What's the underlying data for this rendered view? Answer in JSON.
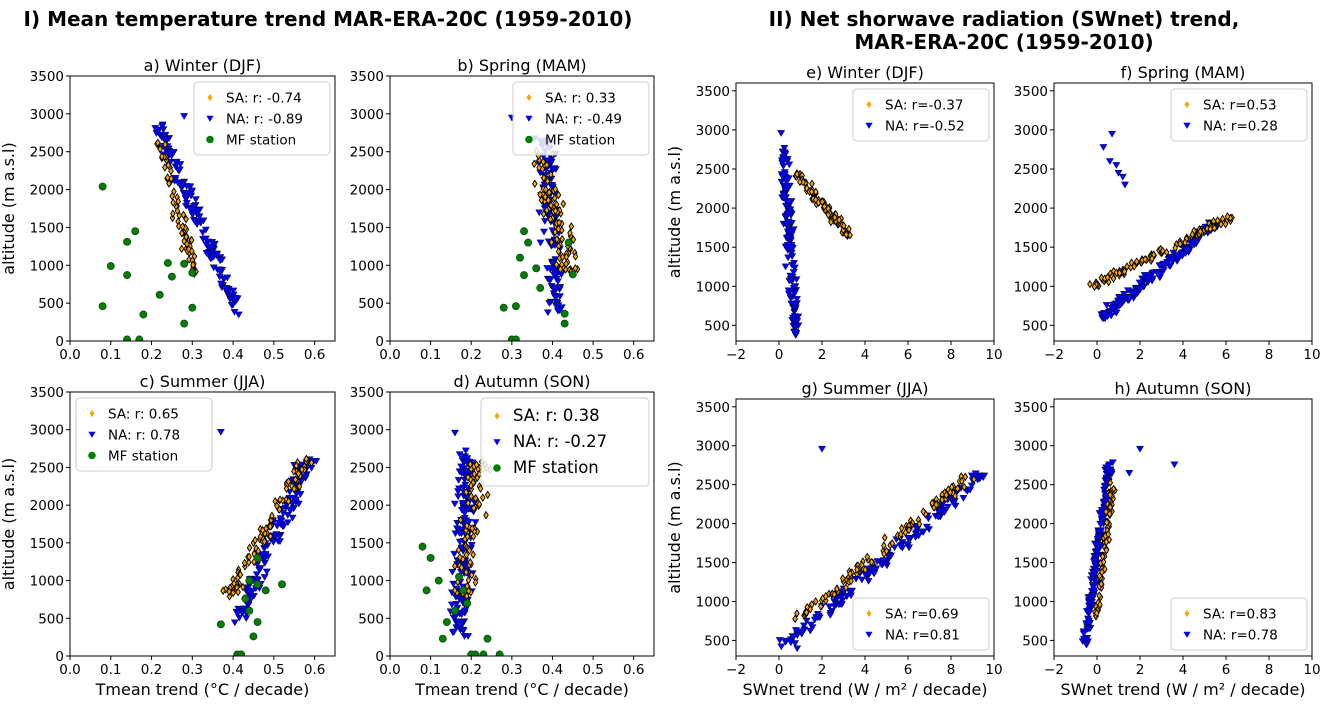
{
  "figure": {
    "left_title": "I) Mean temperature trend MAR-ERA-20C (1959-2010)",
    "right_title_line1": "II) Net shorwave radiation (SWnet) trend,",
    "right_title_line2": "MAR-ERA-20C (1959-2010)"
  },
  "colors": {
    "SA": "#ffa500",
    "NA": "#0000ff",
    "MF": "#008000",
    "edge": "#000000"
  },
  "chart_data": [
    {
      "type": "scatter",
      "title": "a) Winter (DJF)",
      "xlabel": "",
      "ylabel": "altitude (m a.s.l)",
      "xlim": [
        0.0,
        0.65
      ],
      "ylim": [
        0,
        3500
      ],
      "xticks": [
        "0.0",
        "0.1",
        "0.2",
        "0.3",
        "0.4",
        "0.5",
        "0.6"
      ],
      "yticks": [
        "0",
        "500",
        "1000",
        "1500",
        "2000",
        "2500",
        "3000",
        "3500"
      ],
      "legend": {
        "position": "top-right",
        "size": "small",
        "entries": [
          {
            "series": "SA",
            "label": "SA: r: -0.74"
          },
          {
            "series": "NA",
            "label": "NA: r: -0.89"
          },
          {
            "series": "MF",
            "label": "MF station"
          }
        ]
      },
      "SA_trend": {
        "x0": 0.22,
        "y0": 2650,
        "x1": 0.31,
        "y1": 850,
        "spread": 0.02,
        "n": 70
      },
      "NA_trend": {
        "x0": 0.22,
        "y0": 2800,
        "x1": 0.41,
        "y1": 400,
        "spread": 0.025,
        "n": 140
      },
      "NA_extra": [
        [
          0.28,
          2970
        ]
      ],
      "MF_points": [
        [
          0.08,
          2040
        ],
        [
          0.16,
          1450
        ],
        [
          0.14,
          1310
        ],
        [
          0.1,
          990
        ],
        [
          0.14,
          870
        ],
        [
          0.24,
          1030
        ],
        [
          0.25,
          850
        ],
        [
          0.28,
          1020
        ],
        [
          0.3,
          900
        ],
        [
          0.22,
          610
        ],
        [
          0.18,
          350
        ],
        [
          0.08,
          460
        ],
        [
          0.14,
          20
        ],
        [
          0.17,
          20
        ],
        [
          0.28,
          230
        ],
        [
          0.3,
          440
        ]
      ]
    },
    {
      "type": "scatter",
      "title": "b) Spring (MAM)",
      "xlabel": "",
      "ylabel": "",
      "xlim": [
        0.0,
        0.65
      ],
      "ylim": [
        0,
        3500
      ],
      "xticks": [
        "0.0",
        "0.1",
        "0.2",
        "0.3",
        "0.4",
        "0.5",
        "0.6"
      ],
      "yticks": [
        "0",
        "500",
        "1000",
        "1500",
        "2000",
        "2500",
        "3000",
        "3500"
      ],
      "legend": {
        "position": "top-right",
        "size": "small",
        "entries": [
          {
            "series": "SA",
            "label": "SA: r: 0.33"
          },
          {
            "series": "NA",
            "label": "NA: r: -0.49"
          },
          {
            "series": "MF",
            "label": "MF station"
          }
        ]
      },
      "SA_trend": {
        "x0": 0.36,
        "y0": 2600,
        "x1": 0.44,
        "y1": 900,
        "spread": 0.045,
        "n": 90
      },
      "NA_trend": {
        "x0": 0.38,
        "y0": 2700,
        "x1": 0.41,
        "y1": 400,
        "spread": 0.035,
        "n": 130
      },
      "NA_extra": [
        [
          0.3,
          2950
        ]
      ],
      "MF_points": [
        [
          0.33,
          1450
        ],
        [
          0.34,
          1300
        ],
        [
          0.32,
          1100
        ],
        [
          0.36,
          960
        ],
        [
          0.33,
          870
        ],
        [
          0.37,
          700
        ],
        [
          0.31,
          460
        ],
        [
          0.28,
          440
        ],
        [
          0.3,
          20
        ],
        [
          0.31,
          20
        ],
        [
          0.43,
          360
        ],
        [
          0.43,
          230
        ],
        [
          0.45,
          880
        ],
        [
          0.44,
          1300
        ]
      ]
    },
    {
      "type": "scatter",
      "title": "c) Summer (JJA)",
      "xlabel": "Tmean trend (°C / decade)",
      "ylabel": "altitude (m a.s.l)",
      "xlim": [
        0.0,
        0.65
      ],
      "ylim": [
        0,
        3500
      ],
      "xticks": [
        "0.0",
        "0.1",
        "0.2",
        "0.3",
        "0.4",
        "0.5",
        "0.6"
      ],
      "yticks": [
        "0",
        "500",
        "1000",
        "1500",
        "2000",
        "2500",
        "3000",
        "3500"
      ],
      "legend": {
        "position": "top-left",
        "size": "small",
        "entries": [
          {
            "series": "SA",
            "label": "SA: r: 0.65"
          },
          {
            "series": "NA",
            "label": "NA: r: 0.78"
          },
          {
            "series": "MF",
            "label": "MF station"
          }
        ]
      },
      "SA_trend": {
        "x0": 0.39,
        "y0": 800,
        "x1": 0.58,
        "y1": 2600,
        "spread": 0.03,
        "n": 90
      },
      "NA_trend": {
        "x0": 0.41,
        "y0": 450,
        "x1": 0.59,
        "y1": 2650,
        "spread": 0.03,
        "n": 150
      },
      "NA_extra": [
        [
          0.37,
          2970
        ]
      ],
      "MF_points": [
        [
          0.46,
          1300
        ],
        [
          0.44,
          1000
        ],
        [
          0.46,
          950
        ],
        [
          0.48,
          870
        ],
        [
          0.52,
          950
        ],
        [
          0.44,
          600
        ],
        [
          0.46,
          450
        ],
        [
          0.45,
          260
        ],
        [
          0.37,
          420
        ],
        [
          0.41,
          20
        ],
        [
          0.42,
          20
        ],
        [
          0.43,
          760
        ]
      ]
    },
    {
      "type": "scatter",
      "title": "d) Autumn (SON)",
      "xlabel": "Tmean trend (°C / decade)",
      "ylabel": "",
      "xlim": [
        0.0,
        0.65
      ],
      "ylim": [
        0,
        3500
      ],
      "xticks": [
        "0.0",
        "0.1",
        "0.2",
        "0.3",
        "0.4",
        "0.5",
        "0.6"
      ],
      "yticks": [
        "0",
        "500",
        "1000",
        "1500",
        "2000",
        "2500",
        "3000",
        "3500"
      ],
      "legend": {
        "position": "top-right",
        "size": "large",
        "entries": [
          {
            "series": "SA",
            "label": "SA: r: 0.38"
          },
          {
            "series": "NA",
            "label": "NA: r: -0.27"
          },
          {
            "series": "MF",
            "label": "MF station"
          }
        ]
      },
      "SA_trend": {
        "x0": 0.18,
        "y0": 800,
        "x1": 0.22,
        "y1": 2600,
        "spread": 0.04,
        "n": 80
      },
      "NA_trend": {
        "x0": 0.17,
        "y0": 300,
        "x1": 0.19,
        "y1": 2700,
        "spread": 0.035,
        "n": 150
      },
      "NA_extra": [
        [
          0.16,
          2960
        ]
      ],
      "MF_points": [
        [
          0.08,
          1450
        ],
        [
          0.1,
          1300
        ],
        [
          0.12,
          1000
        ],
        [
          0.09,
          870
        ],
        [
          0.17,
          1050
        ],
        [
          0.18,
          870
        ],
        [
          0.19,
          700
        ],
        [
          0.16,
          600
        ],
        [
          0.14,
          450
        ],
        [
          0.13,
          230
        ],
        [
          0.2,
          20
        ],
        [
          0.21,
          20
        ],
        [
          0.23,
          20
        ],
        [
          0.27,
          20
        ],
        [
          0.24,
          230
        ]
      ]
    },
    {
      "type": "scatter",
      "title": "e) Winter (DJF)",
      "xlabel": "",
      "ylabel": "altitude (m a.s.l)",
      "xlim": [
        -2,
        10
      ],
      "ylim": [
        300,
        3600
      ],
      "xticks": [
        "−2",
        "0",
        "2",
        "4",
        "6",
        "8",
        "10"
      ],
      "yticks": [
        "500",
        "1000",
        "1500",
        "2000",
        "2500",
        "3000",
        "3500"
      ],
      "legend": {
        "position": "top-right",
        "size": "small",
        "entries": [
          {
            "series": "SA",
            "label": "SA: r=-0.37"
          },
          {
            "series": "NA",
            "label": "NA: r=-0.52"
          }
        ]
      },
      "SA_trend": {
        "x0": 0.8,
        "y0": 2450,
        "x1": 3.2,
        "y1": 1650,
        "spread": 0.35,
        "n": 90
      },
      "NA_trend": {
        "x0": 0.2,
        "y0": 2800,
        "x1": 0.8,
        "y1": 400,
        "spread": 0.3,
        "n": 150
      },
      "NA_extra": [
        [
          0.1,
          2960
        ]
      ],
      "MF_points": []
    },
    {
      "type": "scatter",
      "title": "f) Spring (MAM)",
      "xlabel": "",
      "ylabel": "",
      "xlim": [
        -2,
        10
      ],
      "ylim": [
        300,
        3600
      ],
      "xticks": [
        "−2",
        "0",
        "2",
        "4",
        "6",
        "8",
        "10"
      ],
      "yticks": [
        "500",
        "1000",
        "1500",
        "2000",
        "2500",
        "3000",
        "3500"
      ],
      "legend": {
        "position": "top-right",
        "size": "small",
        "entries": [
          {
            "series": "SA",
            "label": "SA: r=0.53"
          },
          {
            "series": "NA",
            "label": "NA: r=0.28"
          }
        ]
      },
      "SA_trend": {
        "x0": -0.2,
        "y0": 1000,
        "x1": 6.3,
        "y1": 1900,
        "spread": 0.45,
        "n": 110
      },
      "NA_trend": {
        "x0": 0.2,
        "y0": 600,
        "x1": 5.5,
        "y1": 1800,
        "spread": 0.5,
        "n": 150
      },
      "NA_extra": [
        [
          0.3,
          2780
        ],
        [
          0.6,
          2600
        ],
        [
          1.0,
          2450
        ],
        [
          1.3,
          2300
        ],
        [
          0.7,
          2950
        ],
        [
          0.9,
          2550
        ],
        [
          1.2,
          2400
        ]
      ],
      "MF_points": []
    },
    {
      "type": "scatter",
      "title": "g) Summer (JJA)",
      "xlabel": "SWnet trend (W / m² / decade)",
      "ylabel": "altitude (m a.s.l)",
      "xlim": [
        -2,
        10
      ],
      "ylim": [
        300,
        3600
      ],
      "xticks": [
        "−2",
        "0",
        "2",
        "4",
        "6",
        "8",
        "10"
      ],
      "yticks": [
        "500",
        "1000",
        "1500",
        "2000",
        "2500",
        "3000",
        "3500"
      ],
      "legend": {
        "position": "bottom-right",
        "size": "small",
        "entries": [
          {
            "series": "SA",
            "label": "SA: r=0.69"
          },
          {
            "series": "NA",
            "label": "NA: r=0.81"
          }
        ]
      },
      "SA_trend": {
        "x0": 1.0,
        "y0": 800,
        "x1": 9.0,
        "y1": 2650,
        "spread": 0.45,
        "n": 110
      },
      "NA_trend": {
        "x0": 0.4,
        "y0": 450,
        "x1": 9.5,
        "y1": 2650,
        "spread": 0.55,
        "n": 160
      },
      "NA_extra": [
        [
          2.0,
          2960
        ]
      ],
      "MF_points": []
    },
    {
      "type": "scatter",
      "title": "h) Autumn (SON)",
      "xlabel": "SWnet trend (W / m² / decade)",
      "ylabel": "",
      "xlim": [
        -2,
        10
      ],
      "ylim": [
        300,
        3600
      ],
      "xticks": [
        "−2",
        "0",
        "2",
        "4",
        "6",
        "8",
        "10"
      ],
      "yticks": [
        "500",
        "1000",
        "1500",
        "2000",
        "2500",
        "3000",
        "3500"
      ],
      "legend": {
        "position": "bottom-right",
        "size": "small",
        "entries": [
          {
            "series": "SA",
            "label": "SA: r=0.83"
          },
          {
            "series": "NA",
            "label": "NA: r=0.78"
          }
        ]
      },
      "SA_trend": {
        "x0": 0.0,
        "y0": 800,
        "x1": 0.7,
        "y1": 2500,
        "spread": 0.2,
        "n": 80
      },
      "NA_trend": {
        "x0": -0.6,
        "y0": 400,
        "x1": 0.6,
        "y1": 2750,
        "spread": 0.22,
        "n": 170
      },
      "NA_extra": [
        [
          2.0,
          2960
        ],
        [
          3.6,
          2760
        ],
        [
          1.5,
          2650
        ]
      ],
      "MF_points": []
    }
  ]
}
